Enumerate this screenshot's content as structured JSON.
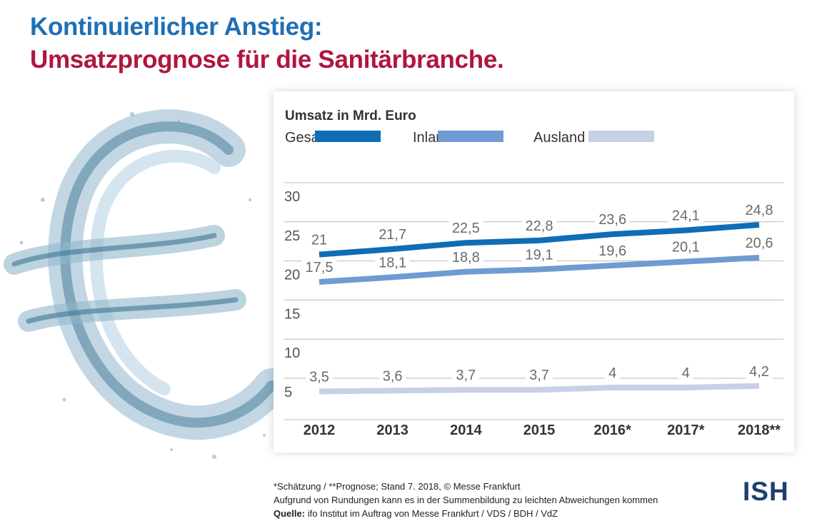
{
  "title_line1": "Kontinuierlicher Anstieg:",
  "title_line2": "Umsatzprognose für die Sanitärbranche.",
  "footer": {
    "note": "*Schätzung / **Prognose; Stand 7. 2018, © Messe Frankfurt",
    "rounding": "Aufgrund von Rundungen kann es in der Summenbildung zu leichten Abweichungen kommen",
    "source_label": "Quelle:",
    "source_text": " ifo Institut im Auftrag von Messe Frankfurt / VDS / BDH / VdZ"
  },
  "logo_text": "ISH",
  "colors": {
    "title_blue": "#1f6fb4",
    "title_red": "#b0163e",
    "gesamt": "#0f6db5",
    "inland": "#6f9bd3",
    "ausland": "#c8d0e6"
  },
  "chart_data": {
    "type": "line",
    "title": "Umsatz in Mrd. Euro",
    "categories": [
      "2012",
      "2013",
      "2014",
      "2015",
      "2016*",
      "2017*",
      "2018**"
    ],
    "series": [
      {
        "name": "Gesamt",
        "values": [
          21,
          21.7,
          22.5,
          22.8,
          23.6,
          24.1,
          24.8
        ],
        "labels": [
          "21",
          "21,7",
          "22,5",
          "22,8",
          "23,6",
          "24,1",
          "24,8"
        ],
        "color": "#0f6db5"
      },
      {
        "name": "Inland",
        "values": [
          17.5,
          18.1,
          18.8,
          19.1,
          19.6,
          20.1,
          20.6
        ],
        "labels": [
          "17,5",
          "18,1",
          "18,8",
          "19,1",
          "19,6",
          "20,1",
          "20,6"
        ],
        "color": "#6f9bd3"
      },
      {
        "name": "Ausland",
        "values": [
          3.5,
          3.6,
          3.7,
          3.7,
          4,
          4,
          4.2
        ],
        "labels": [
          "3,5",
          "3,6",
          "3,7",
          "3,7",
          "4",
          "4",
          "4,2"
        ],
        "color": "#c8d0e6"
      }
    ],
    "yticks": [
      "30",
      "25",
      "20",
      "15",
      "10",
      "5"
    ],
    "ytick_values": [
      30,
      25,
      20,
      15,
      10,
      5
    ],
    "ylim": [
      0,
      30
    ],
    "legend_position": "top-left",
    "grid": true
  }
}
